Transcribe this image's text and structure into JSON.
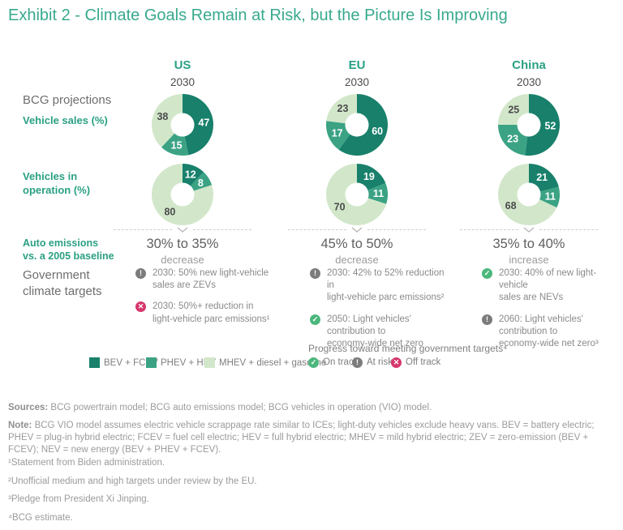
{
  "title": "Exhibit 2 - Climate Goals Remain at Risk, but the Picture Is Improving",
  "colors": {
    "dark": "#18806B",
    "medium": "#3BA384",
    "light": "#D2E7CA",
    "title_teal": "#38A98E",
    "label_teal": "#2AA084",
    "on_track": "#4CB77C",
    "at_risk": "#7C7C7C",
    "off_track": "#D6376D"
  },
  "row_labels": {
    "projections": "BCG projections",
    "vehicle_sales": "Vehicle sales (%)",
    "vio_line1": "Vehicles in",
    "vio_line2": "operation (%)",
    "emissions_line1": "Auto emissions",
    "emissions_line2": "vs. a 2005 baseline",
    "targets_line1": "Government",
    "targets_line2": "climate targets"
  },
  "chart_data": [
    {
      "type": "pie",
      "title": "BCG projections - Vehicle sales (%), 2030",
      "categories": [
        "BEV + FCEV",
        "PHEV + HEV",
        "MHEV + diesel + gasoline"
      ],
      "series": [
        {
          "name": "US",
          "values": [
            47,
            15,
            38
          ]
        },
        {
          "name": "EU",
          "values": [
            60,
            17,
            23
          ]
        },
        {
          "name": "China",
          "values": [
            52,
            23,
            25
          ]
        }
      ]
    },
    {
      "type": "pie",
      "title": "BCG projections - Vehicles in operation (%), 2030",
      "categories": [
        "BEV + FCEV",
        "PHEV + HEV",
        "MHEV + diesel + gasoline"
      ],
      "series": [
        {
          "name": "US",
          "values": [
            12,
            8,
            80
          ]
        },
        {
          "name": "EU",
          "values": [
            19,
            11,
            70
          ]
        },
        {
          "name": "China",
          "values": [
            21,
            11,
            68
          ]
        }
      ]
    }
  ],
  "columns": [
    {
      "name": "US",
      "year": "2030",
      "emissions": {
        "range": "30% to 35%",
        "direction": "decrease"
      },
      "targets": [
        {
          "status": "at-risk",
          "lines": [
            "2030: 50% new light-vehicle",
            "sales are ZEVs"
          ]
        },
        {
          "status": "off-track",
          "lines": [
            "2030: 50%+ reduction in",
            "light-vehicle parc emissions¹"
          ]
        }
      ]
    },
    {
      "name": "EU",
      "year": "2030",
      "emissions": {
        "range": "45% to 50%",
        "direction": "decrease"
      },
      "targets": [
        {
          "status": "at-risk",
          "lines": [
            "2030: 42% to 52% reduction in",
            "light-vehicle parc emissions²"
          ]
        },
        {
          "status": "on-track",
          "lines": [
            "2050: Light vehicles'",
            "contribution to",
            "economy-wide net zero"
          ]
        }
      ]
    },
    {
      "name": "China",
      "year": "2030",
      "emissions": {
        "range": "35% to 40%",
        "direction": "increase"
      },
      "targets": [
        {
          "status": "on-track",
          "lines": [
            "2030: 40% of new light-vehicle",
            "sales are NEVs"
          ]
        },
        {
          "status": "at-risk",
          "lines": [
            "2060: Light vehicles'",
            "contribution to",
            "economy-wide net zero³"
          ]
        }
      ]
    }
  ],
  "legend": {
    "powertrains": [
      {
        "label": "BEV + FCEV",
        "color_key": "dark"
      },
      {
        "label": "PHEV + HEV",
        "color_key": "medium"
      },
      {
        "label": "MHEV + diesel + gasoline",
        "color_key": "light"
      }
    ],
    "progress_title": "Progress toward meeting government targets⁴",
    "statuses": [
      {
        "label": "On track",
        "status": "on-track"
      },
      {
        "label": "At risk",
        "status": "at-risk"
      },
      {
        "label": "Off track",
        "status": "off-track"
      }
    ]
  },
  "footer": {
    "sources_label": "Sources:",
    "sources": " BCG powertrain model; BCG auto emissions model; BCG vehicles in operation (VIO) model.",
    "note_label": "Note:",
    "note": " BCG VIO model assumes electric vehicle scrappage rate similar to ICEs; light-duty vehicles exclude heavy vans. BEV = battery electric; PHEV = plug-in hybrid electric; FCEV = fuel cell electric; HEV = full hybrid electric; MHEV = mild hybrid electric; ZEV = zero-emission (BEV + FCEV); NEV = new energy (BEV + PHEV + FCEV).",
    "footnotes": [
      "¹Statement from Biden administration.",
      "²Unofficial medium and high targets under review by the EU.",
      "³Pledge from President Xi Jinping.",
      "⁴BCG estimate."
    ]
  }
}
